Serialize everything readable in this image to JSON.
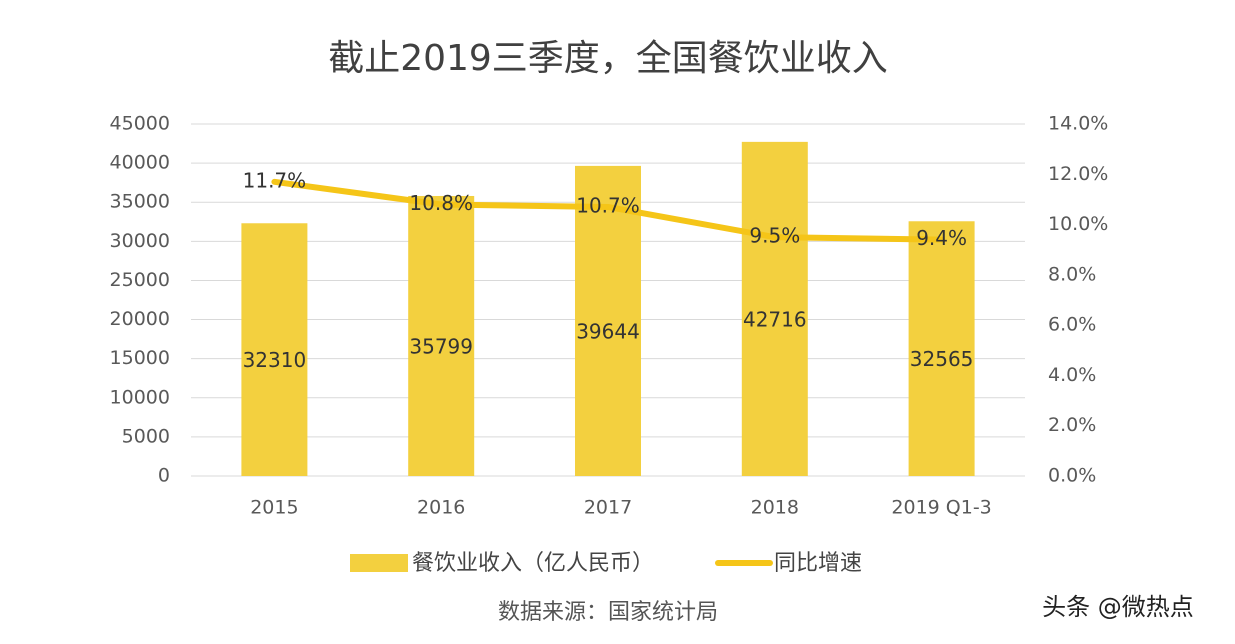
{
  "chart_data": {
    "type": "bar_line",
    "title": "截止2019三季度，全国餐饮业收入",
    "categories": [
      "2015",
      "2016",
      "2017",
      "2018",
      "2019 Q1-3"
    ],
    "series": [
      {
        "name": "餐饮业收入（亿人民币）",
        "type": "bar",
        "color": "#f3d03f",
        "values": [
          32310,
          35799,
          39644,
          42716,
          32565
        ]
      },
      {
        "name": "同比增速",
        "type": "line",
        "axis": "y2",
        "color": "#f5c518",
        "values": [
          11.7,
          10.8,
          10.7,
          9.5,
          9.4
        ],
        "value_labels": [
          "11.7%",
          "10.8%",
          "10.7%",
          "9.5%",
          "9.4%"
        ]
      }
    ],
    "ylim": [
      0,
      45000
    ],
    "yticks": [
      0,
      5000,
      10000,
      15000,
      20000,
      25000,
      30000,
      35000,
      40000,
      45000
    ],
    "y2lim": [
      0,
      14
    ],
    "y2ticks": [
      {
        "value": 0,
        "label": "0.0%"
      },
      {
        "value": 2,
        "label": "2.0%"
      },
      {
        "value": 4,
        "label": "4.0%"
      },
      {
        "value": 6,
        "label": "6.0%"
      },
      {
        "value": 8,
        "label": "8.0%"
      },
      {
        "value": 10,
        "label": "10.0%"
      },
      {
        "value": 12,
        "label": "12.0%"
      },
      {
        "value": 14,
        "label": "14.0%"
      }
    ],
    "grid": true,
    "legend": "bottom",
    "source": "数据来源：国家统计局",
    "watermark": "头条 @微热点"
  }
}
